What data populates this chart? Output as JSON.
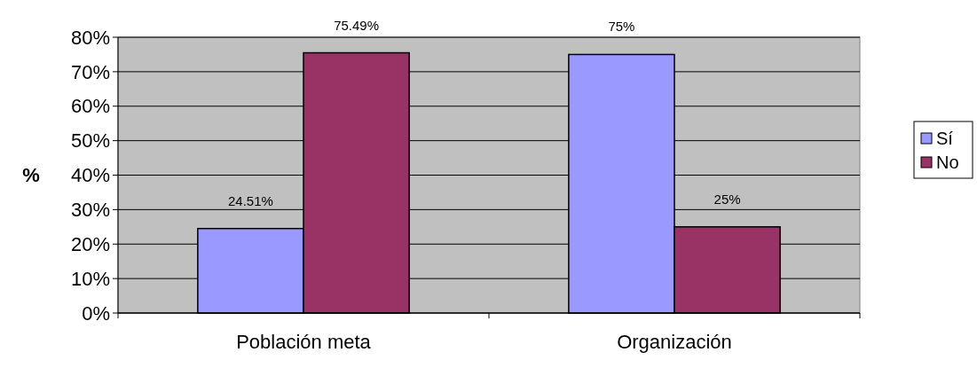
{
  "chart_data": {
    "type": "bar",
    "ylabel": "%",
    "categories": [
      "Población meta",
      "Organización"
    ],
    "series": [
      {
        "name": "Sí",
        "color": "#9999ff",
        "values": [
          24.51,
          75
        ],
        "value_labels": [
          "24.51%",
          "75%"
        ]
      },
      {
        "name": "No",
        "color": "#993366",
        "values": [
          75.49,
          25
        ],
        "value_labels": [
          "75.49%",
          "25%"
        ]
      }
    ],
    "ylim": [
      0,
      80
    ],
    "yticks": [
      {
        "value": 0,
        "label": "0%"
      },
      {
        "value": 10,
        "label": "10%"
      },
      {
        "value": 20,
        "label": "20%"
      },
      {
        "value": 30,
        "label": "30%"
      },
      {
        "value": 40,
        "label": "40%"
      },
      {
        "value": 50,
        "label": "50%"
      },
      {
        "value": 60,
        "label": "60%"
      },
      {
        "value": 70,
        "label": "70%"
      },
      {
        "value": 80,
        "label": "80%"
      }
    ],
    "grid": "y",
    "legend": "right"
  }
}
